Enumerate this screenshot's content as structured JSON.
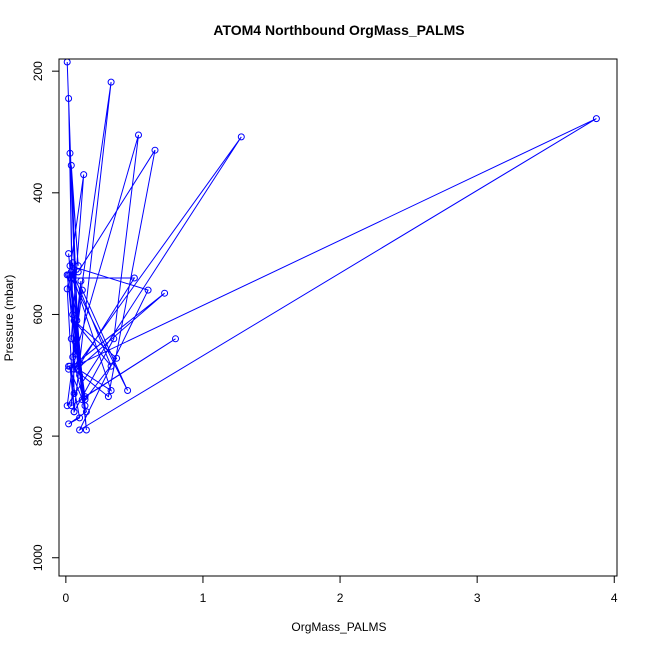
{
  "chart_data": {
    "type": "line",
    "title": "ATOM4 Northbound OrgMass_PALMS",
    "xlabel": "OrgMass_PALMS",
    "ylabel": "Pressure (mbar)",
    "xlim": [
      -0.05,
      4.02
    ],
    "ylim": [
      1030,
      180
    ],
    "y_axis_inverted": true,
    "xticks": [
      0,
      1,
      2,
      3,
      4
    ],
    "yticks": [
      200,
      400,
      600,
      800,
      1000
    ],
    "grid": false,
    "legend": "none",
    "series": [
      {
        "color": "#0000ff",
        "marker": "open-circle",
        "x": [
          0.01,
          0.08,
          0.02,
          0.06,
          0.03,
          0.09,
          0.04,
          0.1,
          0.02,
          0.12,
          0.05,
          0.15,
          0.03,
          0.08,
          0.33,
          0.06,
          0.01,
          0.13,
          0.04,
          0.1,
          0.02,
          0.14,
          0.01,
          0.07,
          0.53,
          0.35,
          0.06,
          0.03,
          0.1,
          0.02,
          0.15,
          0.05,
          0.11,
          0.04,
          0.8,
          0.14,
          0.02,
          0.09,
          0.65,
          0.31,
          0.06,
          1.28,
          0.01,
          0.12,
          0.45,
          0.04,
          0.5,
          0.08,
          0.72,
          0.02,
          3.87,
          0.1,
          0.6,
          0.03,
          0.33,
          0.06,
          0.37,
          0.14,
          0.05,
          0.09,
          0.33,
          0.04
        ],
        "y": [
          185,
          640,
          245,
          730,
          335,
          520,
          355,
          700,
          500,
          740,
          515,
          790,
          535,
          610,
          218,
          760,
          558,
          370,
          640,
          680,
          685,
          750,
          535,
          665,
          305,
          640,
          760,
          685,
          770,
          780,
          760,
          670,
          545,
          750,
          640,
          735,
          535,
          530,
          330,
          735,
          690,
          308,
          750,
          560,
          725,
          540,
          540,
          690,
          565,
          690,
          278,
          790,
          560,
          520,
          685,
          610,
          672,
          740,
          600,
          690,
          725,
          530
        ]
      }
    ]
  }
}
